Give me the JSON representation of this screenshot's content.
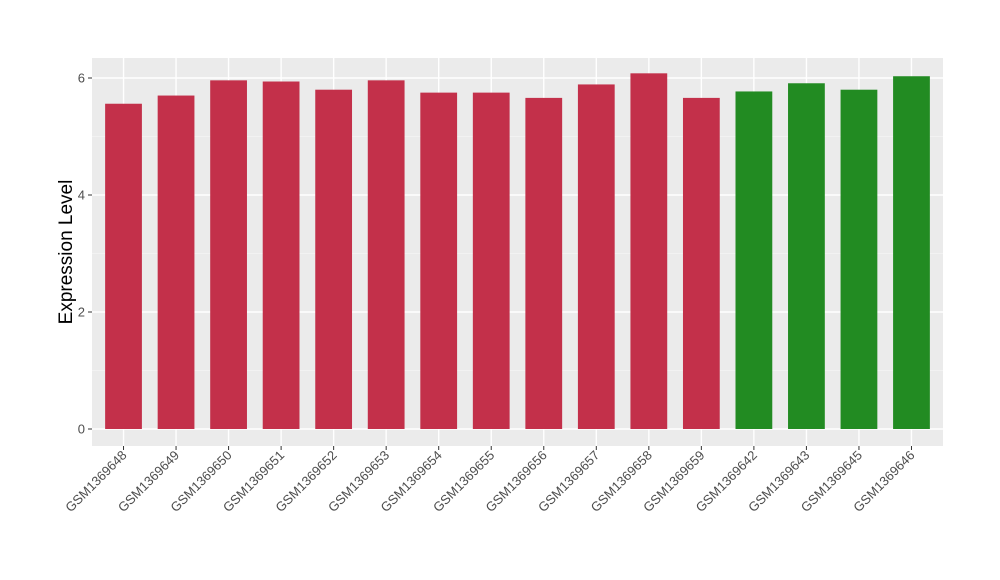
{
  "chart_data": {
    "type": "bar",
    "title": "",
    "xlabel": "",
    "ylabel": "Expression Level",
    "ylim": [
      0,
      6.3
    ],
    "yticks": [
      0,
      2,
      4,
      6
    ],
    "grid": true,
    "panel_background": "#ebebeb",
    "categories": [
      "GSM1369648",
      "GSM1369649",
      "GSM1369650",
      "GSM1369651",
      "GSM1369652",
      "GSM1369653",
      "GSM1369654",
      "GSM1369655",
      "GSM1369656",
      "GSM1369657",
      "GSM1369658",
      "GSM1369659",
      "GSM1369642",
      "GSM1369643",
      "GSM1369645",
      "GSM1369646"
    ],
    "values": [
      5.56,
      5.7,
      5.96,
      5.94,
      5.8,
      5.96,
      5.75,
      5.75,
      5.66,
      5.89,
      6.08,
      5.66,
      5.77,
      5.91,
      5.8,
      6.03
    ],
    "colors": [
      "#c3304a",
      "#c3304a",
      "#c3304a",
      "#c3304a",
      "#c3304a",
      "#c3304a",
      "#c3304a",
      "#c3304a",
      "#c3304a",
      "#c3304a",
      "#c3304a",
      "#c3304a",
      "#228b22",
      "#228b22",
      "#228b22",
      "#228b22"
    ]
  }
}
